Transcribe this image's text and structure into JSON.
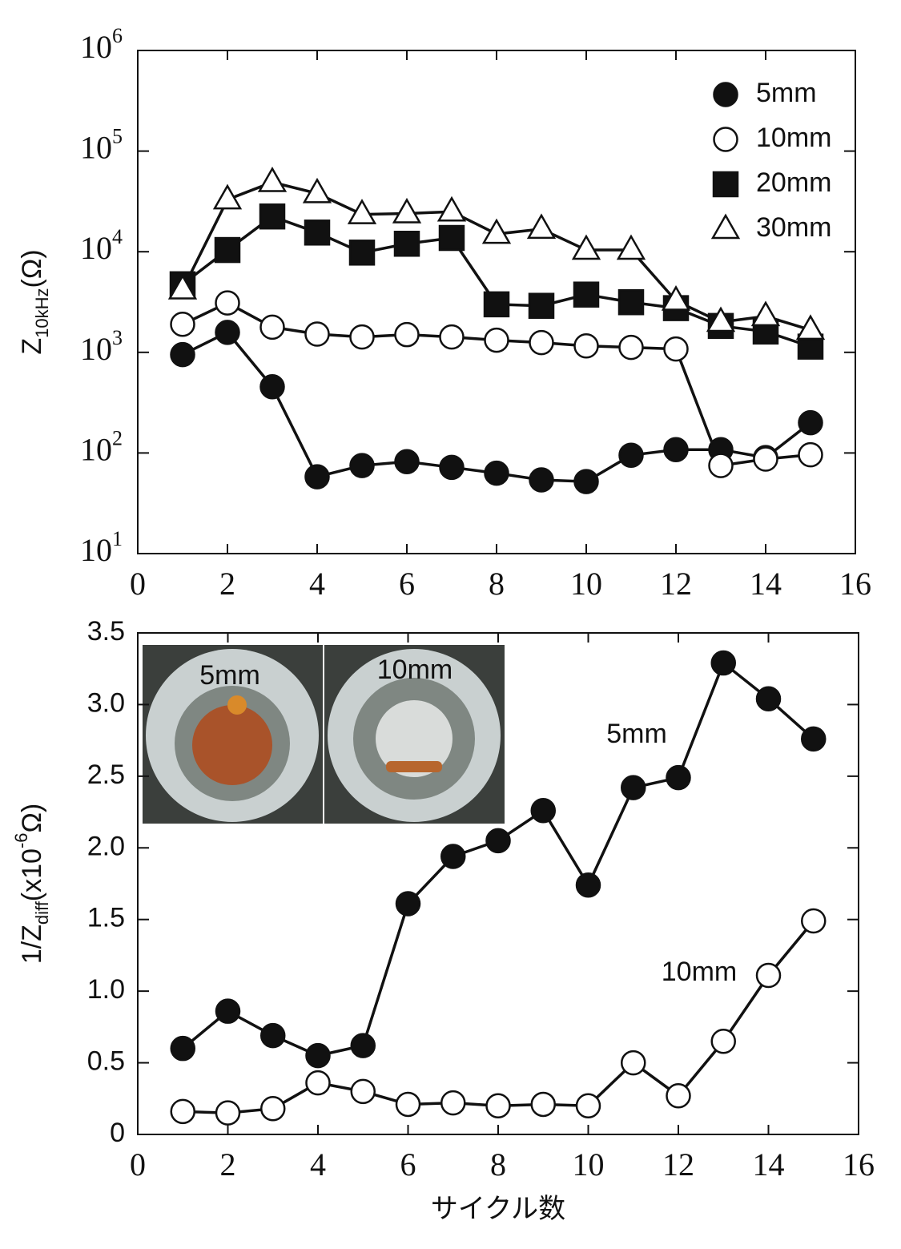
{
  "chart_data": [
    {
      "type": "line",
      "log_y": true,
      "ylabel": [
        {
          "text": "Z"
        },
        {
          "text": "10kHz",
          "shift": "sub"
        },
        {
          "text": "(Ω)"
        }
      ],
      "x": [
        1,
        2,
        3,
        4,
        5,
        6,
        7,
        8,
        9,
        10,
        11,
        12,
        13,
        14,
        15
      ],
      "xlim": [
        0,
        16
      ],
      "xticks": [
        0,
        2,
        4,
        6,
        8,
        10,
        12,
        14,
        16
      ],
      "ylim": [
        10,
        1000000
      ],
      "yticks": [
        {
          "value": 10,
          "label": "10",
          "exponent": "1"
        },
        {
          "value": 100,
          "label": "10",
          "exponent": "2"
        },
        {
          "value": 1000,
          "label": "10",
          "exponent": "3"
        },
        {
          "value": 10000,
          "label": "10",
          "exponent": "4"
        },
        {
          "value": 100000,
          "label": "10",
          "exponent": "5"
        },
        {
          "value": 1000000,
          "label": "10",
          "exponent": "6"
        }
      ],
      "legend": "top-right",
      "series": [
        {
          "name": "5mm",
          "marker": "circle",
          "color": "#111111",
          "fill": "#111111",
          "values": [
            950,
            1580,
            455,
            58,
            75,
            82,
            72,
            63,
            54,
            52,
            95,
            108,
            108,
            90,
            200
          ]
        },
        {
          "name": "10mm",
          "marker": "circle",
          "color": "#111111",
          "fill": "#ffffff",
          "values": [
            1900,
            3100,
            1780,
            1520,
            1420,
            1500,
            1420,
            1320,
            1250,
            1160,
            1120,
            1080,
            75,
            87,
            96
          ]
        },
        {
          "name": "20mm",
          "marker": "square",
          "color": "#111111",
          "fill": "#111111",
          "values": [
            4750,
            10400,
            22400,
            15500,
            9800,
            12000,
            13700,
            3000,
            2900,
            3750,
            3150,
            2750,
            1830,
            1610,
            1140
          ]
        },
        {
          "name": "30mm",
          "marker": "triangle",
          "color": "#111111",
          "fill": "#ffffff",
          "values": [
            4200,
            33000,
            49000,
            38000,
            23500,
            24000,
            25000,
            15000,
            16800,
            10400,
            10400,
            3250,
            2000,
            2280,
            1670
          ]
        }
      ]
    },
    {
      "type": "line",
      "log_y": false,
      "ylabel": [
        {
          "text": "1/Z"
        },
        {
          "text": "diff",
          "shift": "sub"
        },
        {
          "text": "(x10"
        },
        {
          "text": "-6",
          "shift": "sup"
        },
        {
          "text": "Ω)"
        }
      ],
      "xlabel": "サイクル数",
      "x": [
        1,
        2,
        3,
        4,
        5,
        6,
        7,
        8,
        9,
        10,
        11,
        12,
        13,
        14,
        15
      ],
      "xlim": [
        0,
        16
      ],
      "xticks": [
        0,
        2,
        4,
        6,
        8,
        10,
        12,
        14,
        16
      ],
      "ylim": [
        0,
        3.5
      ],
      "yticks": [
        0,
        0.5,
        {
          "value": 1,
          "label": "1.0"
        },
        1.5,
        {
          "value": 2,
          "label": "2.0"
        },
        2.5,
        {
          "value": 3,
          "label": "3.0"
        },
        3.5
      ],
      "inset_labels": [
        "5mm",
        "10mm"
      ],
      "series": [
        {
          "name": "5mm",
          "marker": "circle",
          "color": "#111111",
          "fill": "#111111",
          "values": [
            0.6,
            0.86,
            0.69,
            0.55,
            0.62,
            1.61,
            1.94,
            2.05,
            2.26,
            1.74,
            2.42,
            2.49,
            3.29,
            3.04,
            2.76
          ]
        },
        {
          "name": "10mm",
          "marker": "circle",
          "color": "#111111",
          "fill": "#ffffff",
          "values": [
            0.16,
            0.15,
            0.18,
            0.36,
            0.3,
            0.21,
            0.22,
            0.2,
            0.21,
            0.2,
            0.5,
            0.27,
            0.65,
            1.11,
            1.49
          ]
        }
      ]
    }
  ]
}
